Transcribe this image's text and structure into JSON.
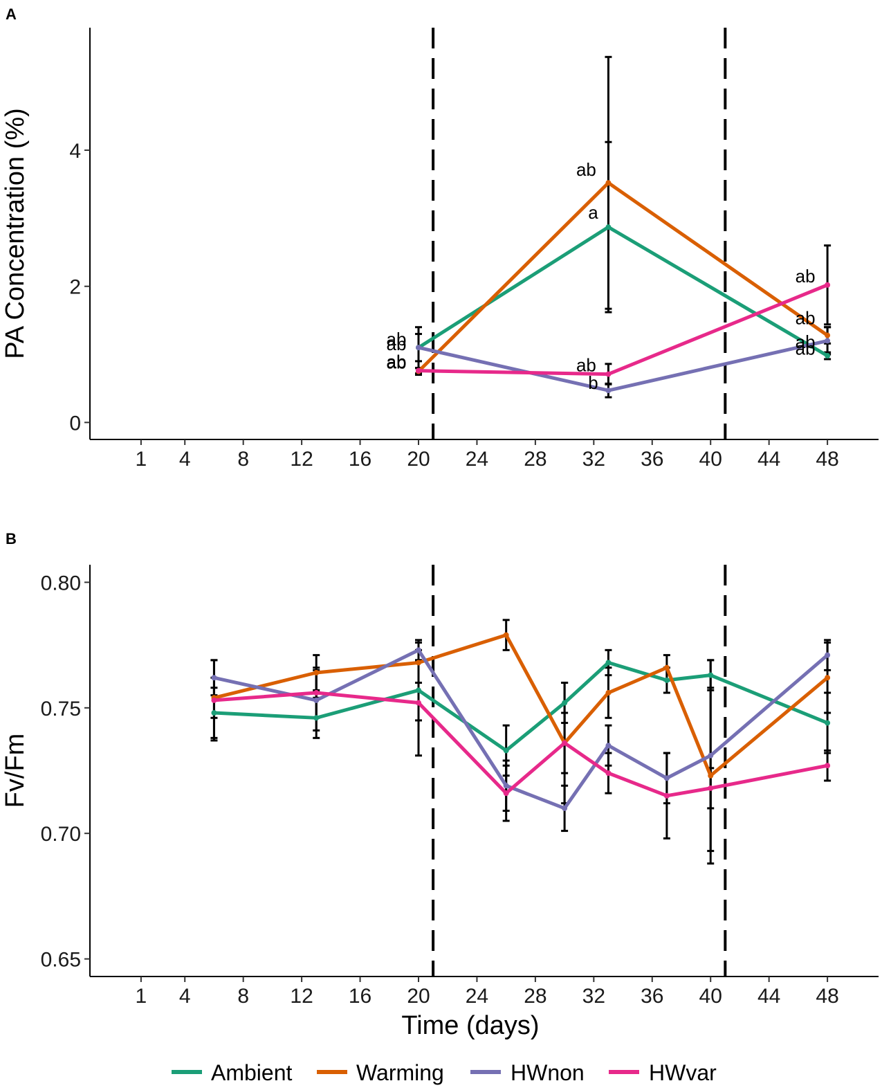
{
  "figure": {
    "legend_label": "",
    "series_names": [
      "Ambient",
      "Warming",
      "HWnon",
      "HWvar"
    ],
    "colors": {
      "Ambient": "#1b9e77",
      "Warming": "#d95f02",
      "HWnon": "#7570b3",
      "HWvar": "#e7298a",
      "errorbar": "#000000",
      "vline": "#000000"
    }
  },
  "chart_data": [
    {
      "type": "line",
      "panel": "A",
      "title": "",
      "xlabel": "",
      "ylabel": "PA Concentration (%)",
      "x_ticks": [
        1,
        4,
        8,
        12,
        16,
        20,
        24,
        28,
        32,
        36,
        40,
        44,
        48
      ],
      "y_ticks": [
        0,
        2,
        4
      ],
      "xlim": [
        -2.5,
        51.5
      ],
      "ylim": [
        -0.25,
        5.8
      ],
      "vlines": [
        21,
        41
      ],
      "series": [
        {
          "name": "Ambient",
          "x": [
            20,
            33,
            48
          ],
          "y": [
            1.1,
            2.87,
            0.98
          ],
          "err": [
            0.2,
            1.25,
            0.05
          ],
          "labels": [
            "ab",
            "a",
            "ab"
          ]
        },
        {
          "name": "Warming",
          "x": [
            20,
            33,
            48
          ],
          "y": [
            0.75,
            3.52,
            1.28
          ],
          "err": [
            0.05,
            1.85,
            0.12
          ],
          "labels": [
            "ab",
            "ab",
            "ab"
          ]
        },
        {
          "name": "HWnon",
          "x": [
            20,
            33,
            48
          ],
          "y": [
            1.1,
            0.47,
            1.2
          ],
          "err": [
            0.3,
            0.1,
            0.2
          ],
          "labels": [
            "ab",
            "b",
            "ab"
          ]
        },
        {
          "name": "HWvar",
          "x": [
            20,
            33,
            48
          ],
          "y": [
            0.76,
            0.71,
            2.02
          ],
          "err": [
            0.04,
            0.15,
            0.58
          ],
          "labels": [
            "ab",
            "ab",
            "ab"
          ]
        }
      ]
    },
    {
      "type": "line",
      "panel": "B",
      "title": "",
      "xlabel": "Time (days)",
      "ylabel": "Fv/Fm",
      "x_ticks": [
        1,
        4,
        8,
        12,
        16,
        20,
        24,
        28,
        32,
        36,
        40,
        44,
        48
      ],
      "y_ticks": [
        0.65,
        0.7,
        0.75,
        0.8
      ],
      "xlim": [
        -2.5,
        51.5
      ],
      "ylim": [
        0.643,
        0.807
      ],
      "vlines": [
        21,
        41
      ],
      "series": [
        {
          "name": "Ambient",
          "x": [
            6,
            13,
            20,
            26,
            30,
            33,
            37,
            40,
            48
          ],
          "y": [
            0.748,
            0.746,
            0.757,
            0.733,
            0.752,
            0.768,
            0.761,
            0.763,
            0.744
          ],
          "err": [
            0.01,
            0.008,
            0.012,
            0.01,
            0.008,
            0.005,
            0.005,
            0.006,
            0.012
          ]
        },
        {
          "name": "Warming",
          "x": [
            6,
            13,
            20,
            26,
            30,
            33,
            37,
            40,
            48
          ],
          "y": [
            0.754,
            0.764,
            0.768,
            0.779,
            0.736,
            0.756,
            0.766,
            0.723,
            0.762
          ],
          "err": [
            0.008,
            0.007,
            0.008,
            0.006,
            0.012,
            0.01,
            0.005,
            0.035,
            0.014
          ]
        },
        {
          "name": "HWnon",
          "x": [
            6,
            13,
            20,
            26,
            30,
            33,
            37,
            40,
            48
          ],
          "y": [
            0.762,
            0.753,
            0.773,
            0.719,
            0.71,
            0.735,
            0.722,
            0.731,
            0.771
          ],
          "err": [
            0.007,
            0.012,
            0.004,
            0.01,
            0.009,
            0.008,
            0.01,
            0.038,
            0.006
          ]
        },
        {
          "name": "HWvar",
          "x": [
            6,
            13,
            20,
            26,
            30,
            33,
            37,
            40,
            48
          ],
          "y": [
            0.753,
            0.756,
            0.752,
            0.716,
            0.736,
            0.724,
            0.715,
            0.718,
            0.727
          ],
          "err": [
            0.016,
            0.01,
            0.021,
            0.011,
            0.024,
            0.008,
            0.017,
            0.008,
            0.006
          ]
        }
      ]
    }
  ]
}
